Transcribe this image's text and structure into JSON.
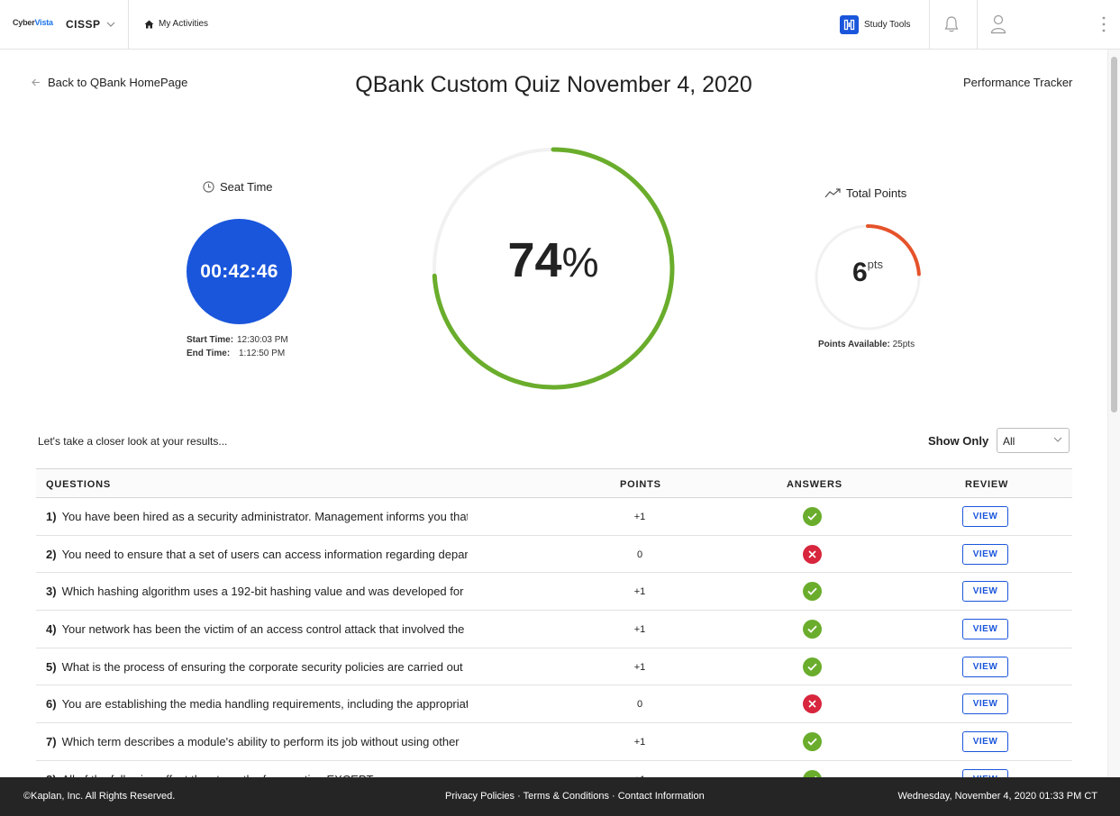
{
  "nav": {
    "logo_a": "Cyber",
    "logo_b": "Vista",
    "course": "CISSP",
    "activities": "My Activities",
    "study_tools": "Study Tools"
  },
  "header": {
    "back": "Back to QBank HomePage",
    "title": "QBank Custom Quiz November 4, 2020",
    "tracker": "Performance Tracker"
  },
  "seat_time": {
    "label": "Seat Time",
    "elapsed": "00:42:46",
    "start_label": "Start Time:",
    "start_value": "12:30:03 PM",
    "end_label": "End Time:",
    "end_value": "1:12:50 PM"
  },
  "score": {
    "percent_value": "74",
    "percent_sign": "%",
    "fraction": 0.74,
    "color": "#6aad2c"
  },
  "points": {
    "label": "Total Points",
    "value": "6",
    "unit": "pts",
    "available_label": "Points Available:",
    "available_value": "25pts",
    "fraction": 0.24,
    "color": "#e5522a"
  },
  "results": {
    "intro": "Let's take a closer look at your results...",
    "filter_label": "Show Only",
    "filter_value": "All",
    "columns": {
      "questions": "QUESTIONS",
      "points": "POINTS",
      "answers": "ANSWERS",
      "review": "REVIEW"
    },
    "view_label": "VIEW",
    "rows": [
      {
        "num": "1)",
        "text": "You have been hired as a security administrator. Management informs you that",
        "points": "+1",
        "correct": true
      },
      {
        "num": "2)",
        "text": "You need to ensure that a set of users can access information regarding department",
        "points": "0",
        "correct": false
      },
      {
        "num": "3)",
        "text": "Which hashing algorithm uses a 192-bit hashing value and was developed for",
        "points": "+1",
        "correct": true
      },
      {
        "num": "4)",
        "text": "Your network has been the victim of an access control attack that involved the",
        "points": "+1",
        "correct": true
      },
      {
        "num": "5)",
        "text": "What is the process of ensuring the corporate security policies are carried out",
        "points": "+1",
        "correct": true
      },
      {
        "num": "6)",
        "text": "You are establishing the media handling requirements, including the appropriate",
        "points": "0",
        "correct": false
      },
      {
        "num": "7)",
        "text": "Which term describes a module's ability to perform its job without using other",
        "points": "+1",
        "correct": true
      },
      {
        "num": "8)",
        "text": "All of the following affect the strength of encryption EXCEPT",
        "points": "+1",
        "correct": true
      }
    ]
  },
  "footer": {
    "copyright": "©Kaplan, Inc. All Rights Reserved.",
    "links": "Privacy Policies · Terms & Conditions · Contact Information",
    "datetime": "Wednesday, November 4, 2020 01:33 PM CT"
  }
}
